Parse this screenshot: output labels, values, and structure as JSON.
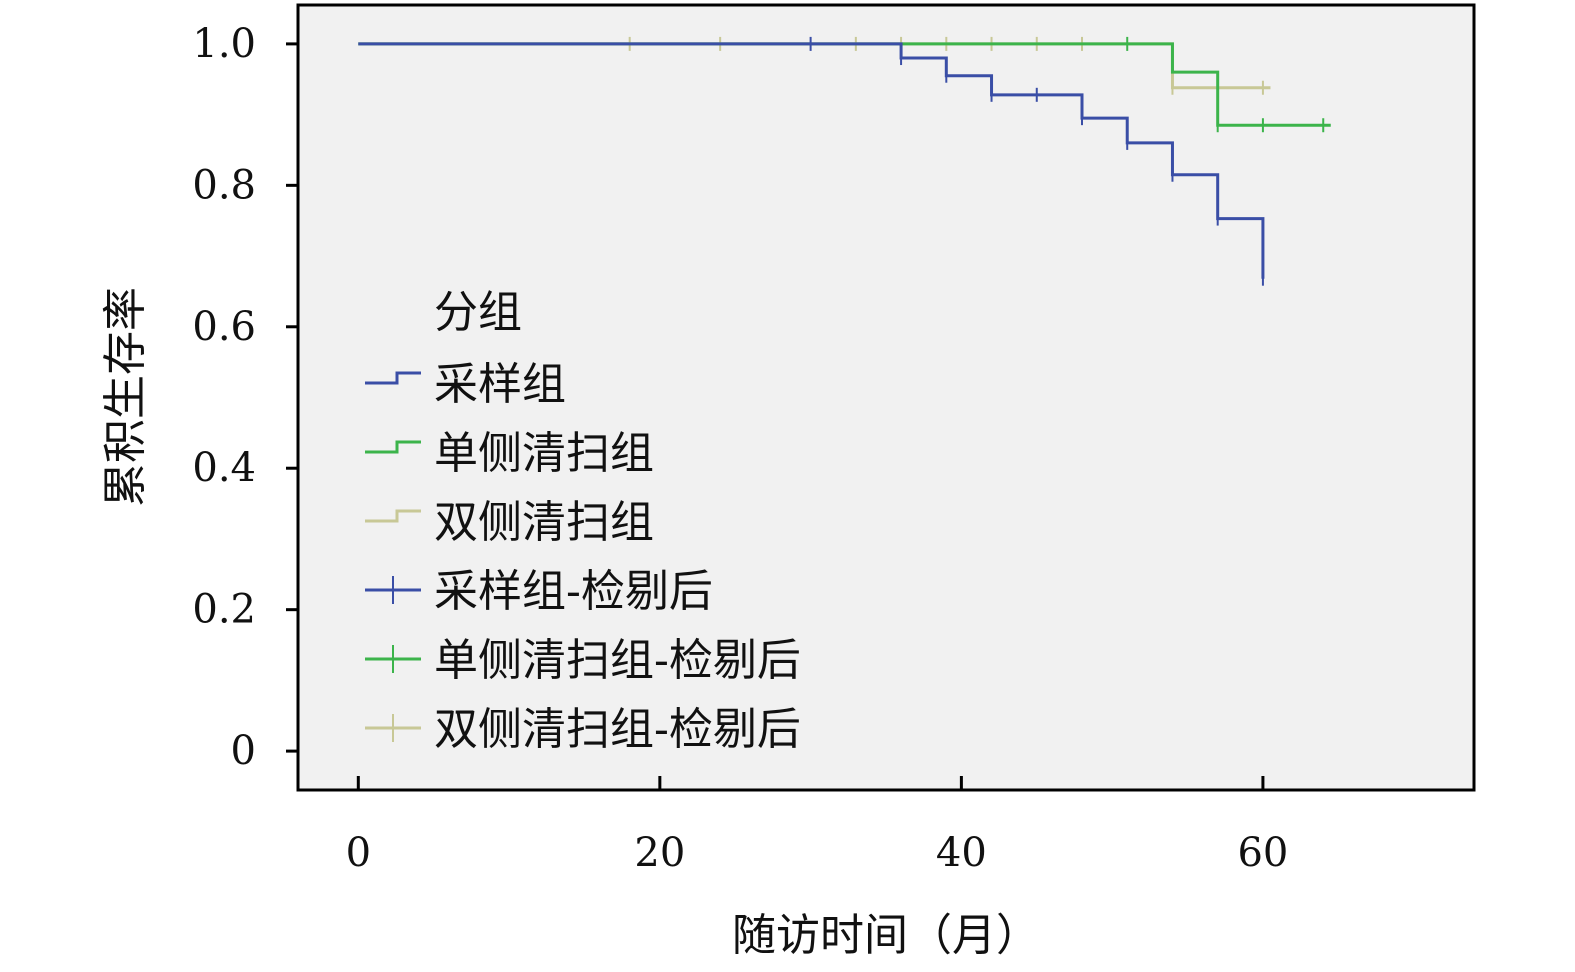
{
  "chart_data": {
    "type": "line",
    "chart_kind": "kaplan-meier survival",
    "xlabel": "随访时间（月）",
    "ylabel": "累积生存率",
    "xlim": [
      -4,
      74
    ],
    "ylim": [
      -0.055,
      1.055
    ],
    "x_ticks": [
      "0",
      "20",
      "40",
      "60"
    ],
    "x_tick_values": [
      0,
      20,
      40,
      60
    ],
    "y_ticks": [
      "0",
      "0.2",
      "0.4",
      "0.6",
      "0.8",
      "1.0"
    ],
    "y_tick_values": [
      0,
      0.2,
      0.4,
      0.6,
      0.8,
      1.0
    ],
    "grid": false,
    "background_color": "#f1f1f1",
    "legend": {
      "title": "分组",
      "position": "center-left",
      "entries": [
        {
          "label": "采样组",
          "color": "#3a4ea6",
          "symbol": "step"
        },
        {
          "label": "单侧清扫组",
          "color": "#3cb44b",
          "symbol": "step"
        },
        {
          "label": "双侧清扫组",
          "color": "#c8c896",
          "symbol": "step"
        },
        {
          "label": "采样组-检剔后",
          "color": "#3a4ea6",
          "symbol": "censor"
        },
        {
          "label": "单侧清扫组-检剔后",
          "color": "#3cb44b",
          "symbol": "censor"
        },
        {
          "label": "双侧清扫组-检剔后",
          "color": "#c8c896",
          "symbol": "censor"
        }
      ]
    },
    "series": [
      {
        "name": "采样组",
        "color": "#3a4ea6",
        "steps": [
          [
            0,
            1.0
          ],
          [
            36,
            0.98
          ],
          [
            39,
            0.955
          ],
          [
            42,
            0.928
          ],
          [
            48,
            0.895
          ],
          [
            51,
            0.86
          ],
          [
            54,
            0.815
          ],
          [
            57,
            0.753
          ],
          [
            60,
            0.668
          ]
        ],
        "censored": [
          [
            30,
            1.0
          ],
          [
            36,
            0.98
          ],
          [
            39,
            0.955
          ],
          [
            42,
            0.928
          ],
          [
            45,
            0.928
          ],
          [
            48,
            0.895
          ],
          [
            51,
            0.86
          ],
          [
            54,
            0.815
          ],
          [
            57,
            0.753
          ],
          [
            60,
            0.668
          ]
        ]
      },
      {
        "name": "单侧清扫组",
        "color": "#3cb44b",
        "steps": [
          [
            0,
            1.0
          ],
          [
            54,
            0.96
          ],
          [
            57,
            0.885
          ],
          [
            64.5,
            0.885
          ]
        ],
        "censored": [
          [
            51,
            1.0
          ],
          [
            57,
            0.885
          ],
          [
            60,
            0.885
          ],
          [
            64,
            0.885
          ]
        ]
      },
      {
        "name": "双侧清扫组",
        "color": "#c8c896",
        "steps": [
          [
            0,
            1.0
          ],
          [
            54,
            0.938
          ],
          [
            60.5,
            0.938
          ]
        ],
        "censored": [
          [
            18,
            1.0
          ],
          [
            24,
            1.0
          ],
          [
            33,
            1.0
          ],
          [
            36,
            1.0
          ],
          [
            39,
            1.0
          ],
          [
            42,
            1.0
          ],
          [
            45,
            1.0
          ],
          [
            48,
            1.0
          ],
          [
            54,
            0.938
          ],
          [
            60,
            0.938
          ]
        ]
      }
    ]
  }
}
